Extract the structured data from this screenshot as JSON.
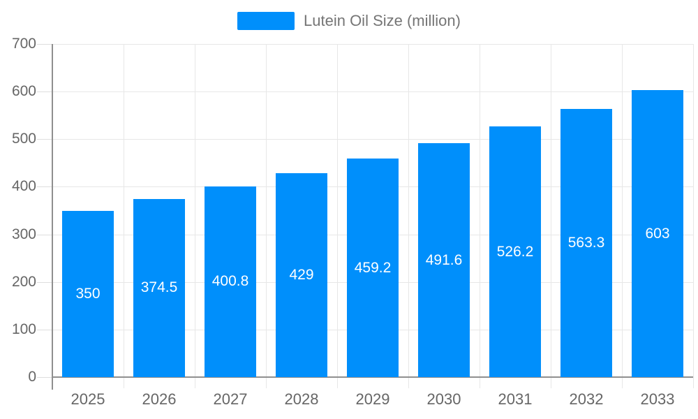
{
  "chart": {
    "legend": {
      "position": "top",
      "items": [
        {
          "label": "Lutein Oil Size (million)",
          "swatch_color": "#008ffb"
        }
      ]
    }
  },
  "chart_data": {
    "type": "bar",
    "title": "Lutein Oil Size (million)",
    "categories": [
      "2025",
      "2026",
      "2027",
      "2028",
      "2029",
      "2030",
      "2031",
      "2032",
      "2033"
    ],
    "series": [
      {
        "name": "Lutein Oil Size (million)",
        "values": [
          350,
          374.5,
          400.8,
          429,
          459.2,
          491.6,
          526.2,
          563.3,
          603
        ]
      }
    ],
    "data_labels": [
      "350",
      "374.5",
      "400.8",
      "429",
      "459.2",
      "491.6",
      "526.2",
      "563.3",
      "603"
    ],
    "xlabel": "",
    "ylabel": "",
    "ylim": [
      0,
      700
    ],
    "yticks": [
      0,
      100,
      200,
      300,
      400,
      500,
      600,
      700
    ],
    "grid": true,
    "legend_position": "top",
    "colors": {
      "bar": "#008ffb",
      "grid": "#e7e7e7",
      "axis": "#8f8f8f",
      "minor_tick": "#dedede",
      "tick_label": "#666666",
      "legend_text": "#757575",
      "data_label": "#ffffff",
      "background": "#ffffff"
    }
  }
}
